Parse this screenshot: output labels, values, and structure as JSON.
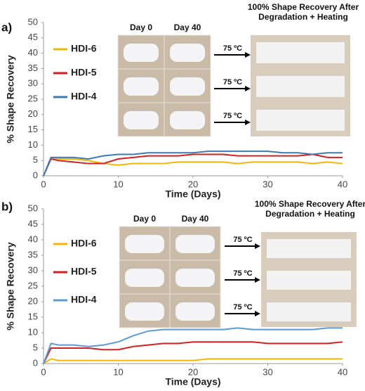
{
  "chart_data": [
    {
      "type": "line",
      "panel_label": "a)",
      "xlabel": "Time (Days)",
      "ylabel": "% Shape Recovery",
      "photo_labels": [
        "Day 0",
        "Day 40"
      ],
      "arrow_labels": [
        "75 ºC",
        "75 ºC",
        "75 ºC"
      ],
      "photo_title": "100% Shape Recovery After Degradation + Heating",
      "xlim": [
        0,
        40
      ],
      "xticks": [
        0,
        10,
        20,
        30,
        40
      ],
      "ylim": [
        0,
        50
      ],
      "yticks": [
        0,
        5,
        10,
        15,
        20,
        25,
        30,
        35,
        40,
        45,
        50
      ],
      "x": [
        0,
        1,
        2,
        4,
        6,
        8,
        10,
        12,
        14,
        16,
        18,
        20,
        22,
        24,
        26,
        28,
        30,
        32,
        34,
        36,
        38,
        40
      ],
      "series": [
        {
          "name": "HDI-6",
          "color": "#f2b705",
          "values": [
            0,
            6,
            5.5,
            5.5,
            5,
            4,
            3.5,
            4,
            4,
            4,
            4.5,
            4.5,
            4.5,
            4.5,
            4,
            4.5,
            4.5,
            4.5,
            4.5,
            4,
            4.5,
            4
          ]
        },
        {
          "name": "HDI-5",
          "color": "#d42020",
          "values": [
            0,
            5.5,
            5,
            4.5,
            4,
            4,
            5.5,
            6,
            6.5,
            6.5,
            6.5,
            7,
            7,
            7,
            6.5,
            6.5,
            6.5,
            6.5,
            6.5,
            7,
            6,
            6
          ]
        },
        {
          "name": "HDI-4",
          "color": "#3b7bb5",
          "values": [
            0,
            6,
            6,
            6,
            5.5,
            6.5,
            7,
            7,
            7.5,
            7.5,
            7.5,
            7.5,
            8,
            8,
            8,
            8,
            8,
            7.5,
            7.5,
            7,
            7.5,
            7.5
          ]
        }
      ]
    },
    {
      "type": "line",
      "panel_label": "b)",
      "xlabel": "Time (Days)",
      "ylabel": "% Shape Recovery",
      "photo_labels": [
        "Day 0",
        "Day 40"
      ],
      "arrow_labels": [
        "75 ºC",
        "75 ºC",
        "75 ºC"
      ],
      "photo_title": "100% Shape Recovery After Degradation + Heating",
      "xlim": [
        0,
        40
      ],
      "xticks": [
        0,
        10,
        20,
        30,
        40
      ],
      "ylim": [
        0,
        50
      ],
      "yticks": [
        0,
        5,
        10,
        15,
        20,
        25,
        30,
        35,
        40,
        45,
        50
      ],
      "x": [
        0,
        1,
        2,
        4,
        6,
        8,
        10,
        12,
        14,
        16,
        18,
        20,
        22,
        24,
        26,
        28,
        30,
        32,
        34,
        36,
        38,
        40
      ],
      "series": [
        {
          "name": "HDI-6",
          "color": "#f2b705",
          "values": [
            0,
            1.5,
            1,
            1,
            1,
            1,
            1,
            1,
            1,
            1,
            1,
            1,
            1.5,
            1.5,
            1.5,
            1.5,
            1.5,
            1.5,
            1.5,
            1.5,
            1.5,
            1.5
          ]
        },
        {
          "name": "HDI-5",
          "color": "#d42020",
          "values": [
            0,
            5,
            5,
            5,
            5,
            4.5,
            4.5,
            5.5,
            6,
            6.5,
            6.5,
            7,
            7,
            7,
            7,
            7,
            6.5,
            6.5,
            6.5,
            6.5,
            6.5,
            7
          ]
        },
        {
          "name": "HDI-4",
          "color": "#5b9bd5",
          "values": [
            0,
            6.5,
            6,
            6,
            5.5,
            6,
            7,
            9,
            10.5,
            11,
            11,
            11,
            11,
            11,
            11.5,
            11,
            11,
            11,
            11,
            11,
            11.5,
            11.5
          ]
        }
      ]
    }
  ]
}
